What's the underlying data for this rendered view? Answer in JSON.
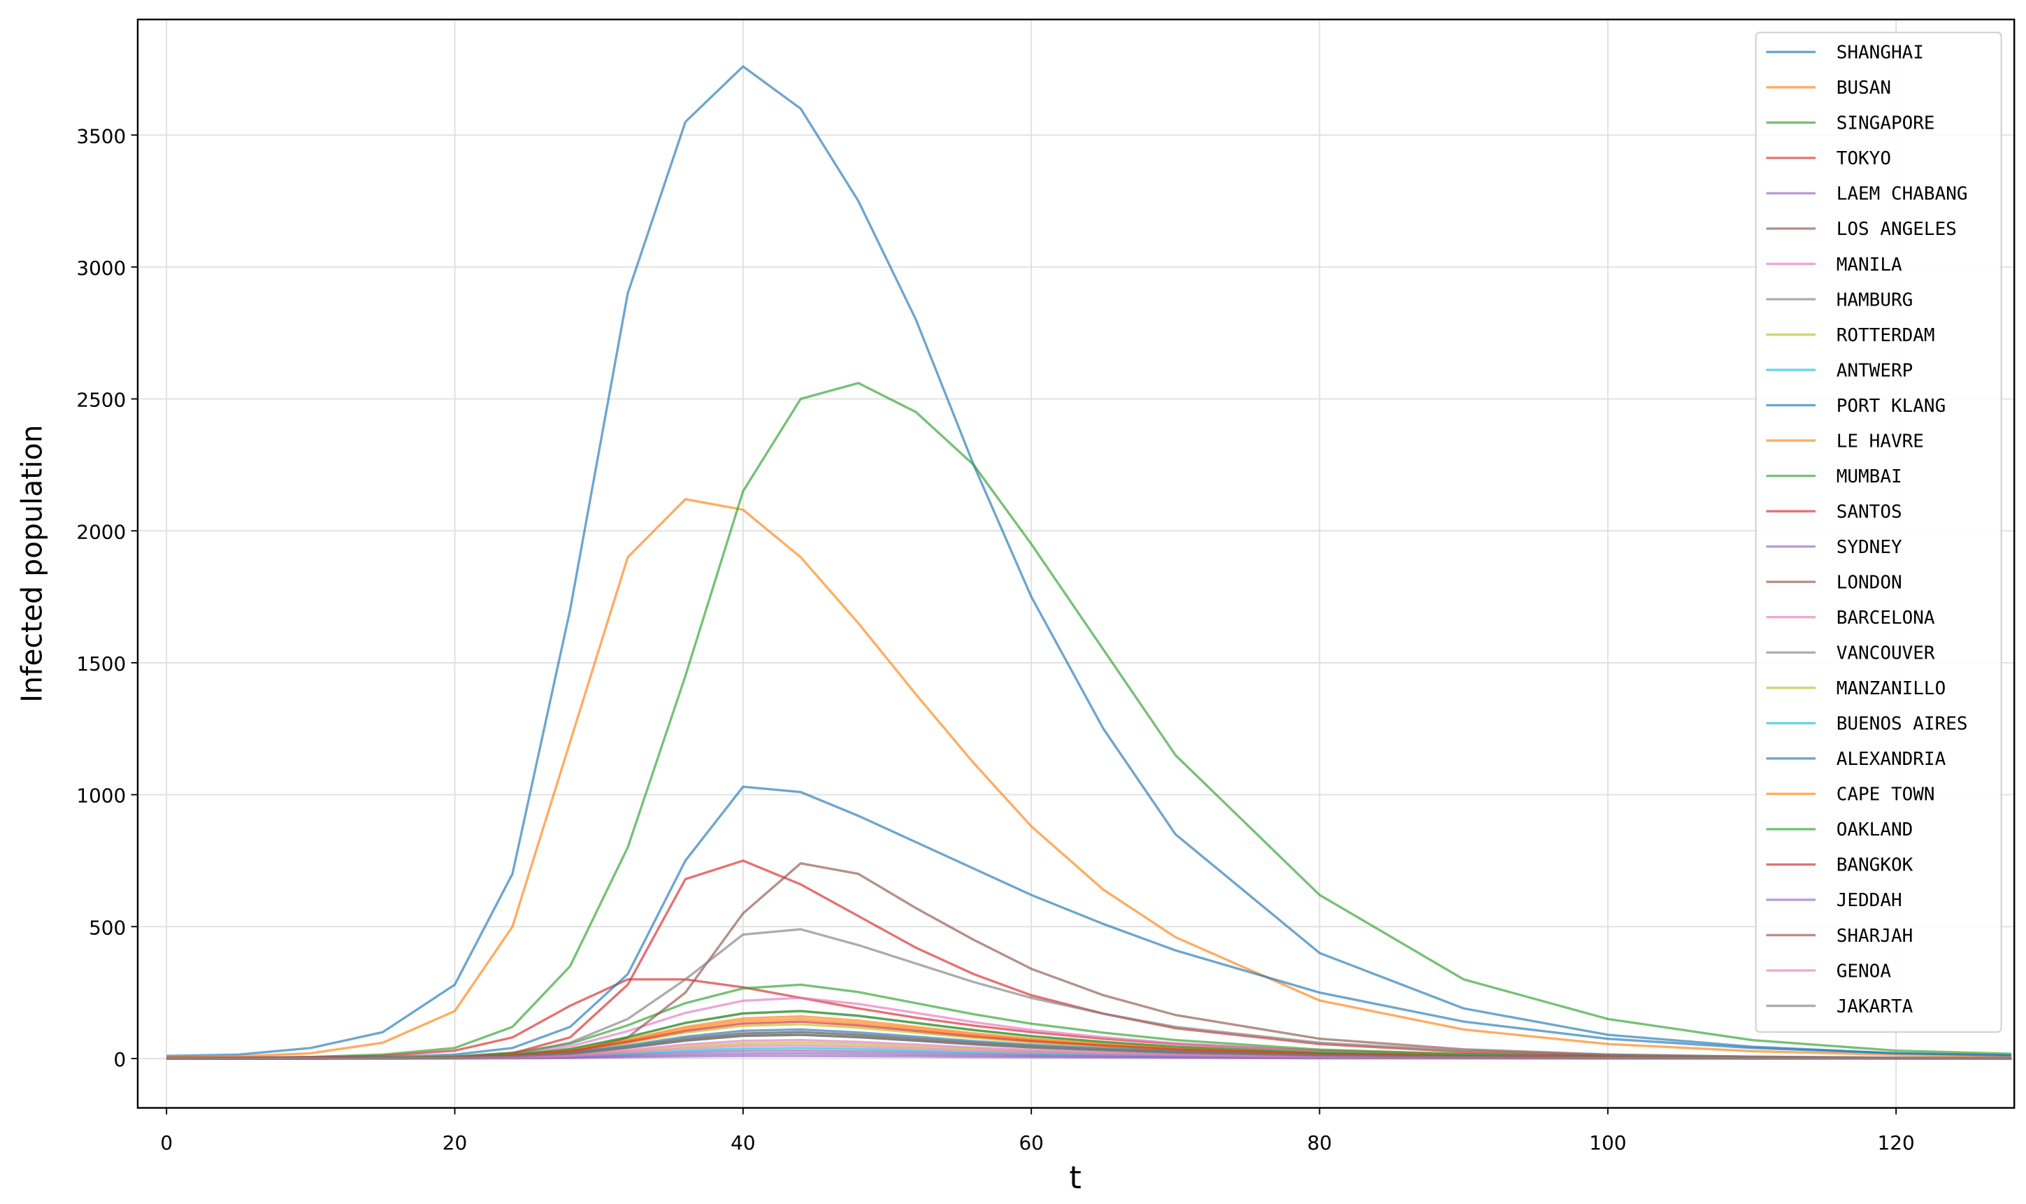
{
  "chart_data": {
    "type": "line",
    "xlabel": "t",
    "ylabel": "Infected population",
    "x": [
      0,
      5,
      10,
      15,
      20,
      24,
      28,
      32,
      36,
      40,
      44,
      48,
      52,
      56,
      60,
      65,
      70,
      80,
      90,
      100,
      110,
      120,
      128
    ],
    "xlim": [
      -2,
      128.2
    ],
    "ylim": [
      -187,
      3938
    ],
    "xticks": [
      0,
      20,
      40,
      60,
      80,
      100,
      120
    ],
    "yticks": [
      0,
      500,
      1000,
      1500,
      2000,
      2500,
      3000,
      3500
    ],
    "grid": true,
    "legend": "upper right",
    "series": [
      {
        "name": "SHANGHAI",
        "color": "#1f77b4",
        "values": [
          10,
          15,
          40,
          100,
          280,
          700,
          1700,
          2900,
          3550,
          3760,
          3600,
          3250,
          2800,
          2250,
          1750,
          1250,
          850,
          400,
          190,
          90,
          45,
          20,
          12
        ]
      },
      {
        "name": "BUSAN",
        "color": "#ff7f0e",
        "values": [
          5,
          8,
          20,
          60,
          180,
          500,
          1200,
          1900,
          2120,
          2080,
          1900,
          1650,
          1380,
          1120,
          880,
          640,
          460,
          220,
          110,
          55,
          28,
          14,
          8
        ]
      },
      {
        "name": "SINGAPORE",
        "color": "#2ca02c",
        "values": [
          2,
          3,
          6,
          15,
          40,
          120,
          350,
          800,
          1450,
          2150,
          2500,
          2560,
          2450,
          2250,
          1950,
          1550,
          1150,
          620,
          300,
          150,
          70,
          30,
          18
        ]
      },
      {
        "name": "TOKYO",
        "color": "#d62728",
        "values": [
          2,
          3,
          5,
          10,
          30,
          80,
          200,
          300,
          300,
          270,
          230,
          190,
          155,
          125,
          100,
          75,
          55,
          30,
          16,
          8,
          4,
          2,
          1
        ]
      },
      {
        "name": "LAEM CHABANG",
        "color": "#9467bd",
        "values": [
          0,
          0,
          0,
          0,
          1,
          2,
          6,
          14,
          23,
          29,
          30,
          27,
          23,
          18,
          14,
          11,
          8,
          4,
          2,
          1,
          0,
          0,
          0
        ]
      },
      {
        "name": "LOS ANGELES",
        "color": "#8c564b",
        "values": [
          0,
          0,
          0,
          1,
          3,
          8,
          20,
          45,
          75,
          95,
          100,
          90,
          75,
          60,
          47,
          35,
          25,
          12,
          6,
          3,
          2,
          1,
          0
        ]
      },
      {
        "name": "MANILA",
        "color": "#e377c2",
        "values": [
          0,
          0,
          0,
          2,
          7,
          18,
          46,
          104,
          173,
          219,
          230,
          207,
          173,
          138,
          108,
          81,
          58,
          28,
          14,
          7,
          3,
          2,
          1
        ]
      },
      {
        "name": "HAMBURG",
        "color": "#7f7f7f",
        "values": [
          0,
          0,
          0,
          2,
          5,
          14,
          36,
          81,
          135,
          171,
          180,
          162,
          135,
          108,
          85,
          63,
          45,
          22,
          11,
          5,
          3,
          1,
          1
        ]
      },
      {
        "name": "ROTTERDAM",
        "color": "#bcbd22",
        "values": [
          0,
          0,
          0,
          1,
          2,
          5,
          12,
          27,
          45,
          57,
          60,
          54,
          45,
          36,
          28,
          21,
          15,
          7,
          4,
          2,
          1,
          0,
          0
        ]
      },
      {
        "name": "ANTWERP",
        "color": "#17becf",
        "values": [
          0,
          0,
          0,
          0,
          1,
          3,
          8,
          18,
          30,
          38,
          40,
          36,
          30,
          24,
          19,
          14,
          10,
          5,
          2,
          1,
          1,
          0,
          0
        ]
      },
      {
        "name": "PORT KLANG",
        "color": "#1f77b4",
        "values": [
          1,
          1,
          2,
          5,
          15,
          40,
          120,
          320,
          750,
          1030,
          1010,
          920,
          820,
          720,
          620,
          510,
          410,
          250,
          140,
          75,
          40,
          20,
          12
        ]
      },
      {
        "name": "LE HAVRE",
        "color": "#ff7f0e",
        "values": [
          0,
          0,
          0,
          2,
          5,
          13,
          32,
          72,
          120,
          152,
          160,
          144,
          120,
          96,
          75,
          56,
          40,
          19,
          10,
          5,
          2,
          1,
          1
        ]
      },
      {
        "name": "MUMBAI",
        "color": "#2ca02c",
        "values": [
          0,
          0,
          0,
          3,
          8,
          22,
          56,
          126,
          210,
          266,
          280,
          252,
          210,
          168,
          132,
          98,
          70,
          34,
          17,
          8,
          4,
          2,
          1
        ]
      },
      {
        "name": "SANTOS",
        "color": "#d62728",
        "values": [
          0,
          0,
          1,
          2,
          5,
          20,
          80,
          280,
          680,
          750,
          660,
          540,
          420,
          320,
          240,
          170,
          115,
          55,
          25,
          12,
          5,
          2,
          1
        ]
      },
      {
        "name": "SYDNEY",
        "color": "#9467bd",
        "values": [
          0,
          0,
          0,
          0,
          1,
          2,
          4,
          9,
          15,
          19,
          20,
          18,
          15,
          12,
          9,
          7,
          5,
          2,
          1,
          1,
          0,
          0,
          0
        ]
      },
      {
        "name": "LONDON",
        "color": "#8c564b",
        "values": [
          0,
          0,
          0,
          1,
          3,
          8,
          20,
          80,
          250,
          550,
          740,
          700,
          570,
          450,
          340,
          240,
          165,
          75,
          35,
          15,
          7,
          3,
          2
        ]
      },
      {
        "name": "BARCELONA",
        "color": "#e377c2",
        "values": [
          0,
          0,
          0,
          1,
          2,
          6,
          14,
          32,
          53,
          67,
          70,
          63,
          53,
          42,
          33,
          25,
          18,
          8,
          4,
          2,
          1,
          0,
          0
        ]
      },
      {
        "name": "VANCOUVER",
        "color": "#7f7f7f",
        "values": [
          0,
          0,
          0,
          1,
          4,
          15,
          60,
          150,
          300,
          470,
          490,
          430,
          360,
          290,
          230,
          170,
          120,
          60,
          30,
          15,
          7,
          3,
          2
        ]
      },
      {
        "name": "MANZANILLO",
        "color": "#bcbd22",
        "values": [
          0,
          0,
          0,
          1,
          4,
          10,
          26,
          59,
          98,
          124,
          130,
          117,
          98,
          78,
          61,
          46,
          33,
          16,
          8,
          4,
          2,
          1,
          1
        ]
      },
      {
        "name": "BUENOS AIRES",
        "color": "#17becf",
        "values": [
          0,
          0,
          0,
          1,
          3,
          7,
          18,
          41,
          68,
          86,
          90,
          81,
          68,
          54,
          42,
          32,
          23,
          11,
          5,
          3,
          1,
          1,
          0
        ]
      },
      {
        "name": "ALEXANDRIA",
        "color": "#1f77b4",
        "values": [
          0,
          0,
          0,
          1,
          3,
          9,
          22,
          50,
          83,
          105,
          110,
          99,
          83,
          66,
          52,
          39,
          28,
          13,
          7,
          3,
          2,
          1,
          0
        ]
      },
      {
        "name": "CAPE TOWN",
        "color": "#ff7f0e",
        "values": [
          0,
          0,
          0,
          2,
          5,
          12,
          30,
          68,
          113,
          143,
          150,
          135,
          113,
          90,
          71,
          53,
          38,
          18,
          9,
          5,
          2,
          1,
          1
        ]
      },
      {
        "name": "OAKLAND",
        "color": "#2ca02c",
        "values": [
          0,
          0,
          0,
          2,
          5,
          14,
          36,
          81,
          135,
          171,
          180,
          162,
          135,
          108,
          85,
          63,
          45,
          22,
          11,
          5,
          3,
          1,
          1
        ]
      },
      {
        "name": "BANGKOK",
        "color": "#d62728",
        "values": [
          0,
          0,
          0,
          1,
          4,
          11,
          28,
          63,
          105,
          133,
          140,
          126,
          105,
          84,
          66,
          49,
          35,
          17,
          8,
          4,
          2,
          1,
          1
        ]
      },
      {
        "name": "JEDDAH",
        "color": "#9467bd",
        "values": [
          0,
          0,
          0,
          0,
          0,
          1,
          2,
          5,
          8,
          10,
          10,
          9,
          8,
          6,
          5,
          4,
          3,
          1,
          1,
          0,
          0,
          0,
          0
        ]
      },
      {
        "name": "SHARJAH",
        "color": "#8c564b",
        "values": [
          0,
          0,
          0,
          1,
          3,
          7,
          18,
          41,
          68,
          86,
          90,
          81,
          68,
          54,
          42,
          32,
          23,
          11,
          5,
          3,
          1,
          1,
          0
        ]
      },
      {
        "name": "GENOA",
        "color": "#e377c2",
        "values": [
          0,
          0,
          0,
          1,
          2,
          4,
          10,
          23,
          38,
          48,
          50,
          45,
          38,
          30,
          24,
          18,
          13,
          6,
          3,
          2,
          1,
          0,
          0
        ]
      },
      {
        "name": "JAKARTA",
        "color": "#7f7f7f",
        "values": [
          0,
          0,
          0,
          1,
          3,
          8,
          20,
          45,
          75,
          95,
          100,
          90,
          75,
          60,
          47,
          35,
          25,
          12,
          6,
          3,
          2,
          1,
          0
        ]
      }
    ]
  }
}
